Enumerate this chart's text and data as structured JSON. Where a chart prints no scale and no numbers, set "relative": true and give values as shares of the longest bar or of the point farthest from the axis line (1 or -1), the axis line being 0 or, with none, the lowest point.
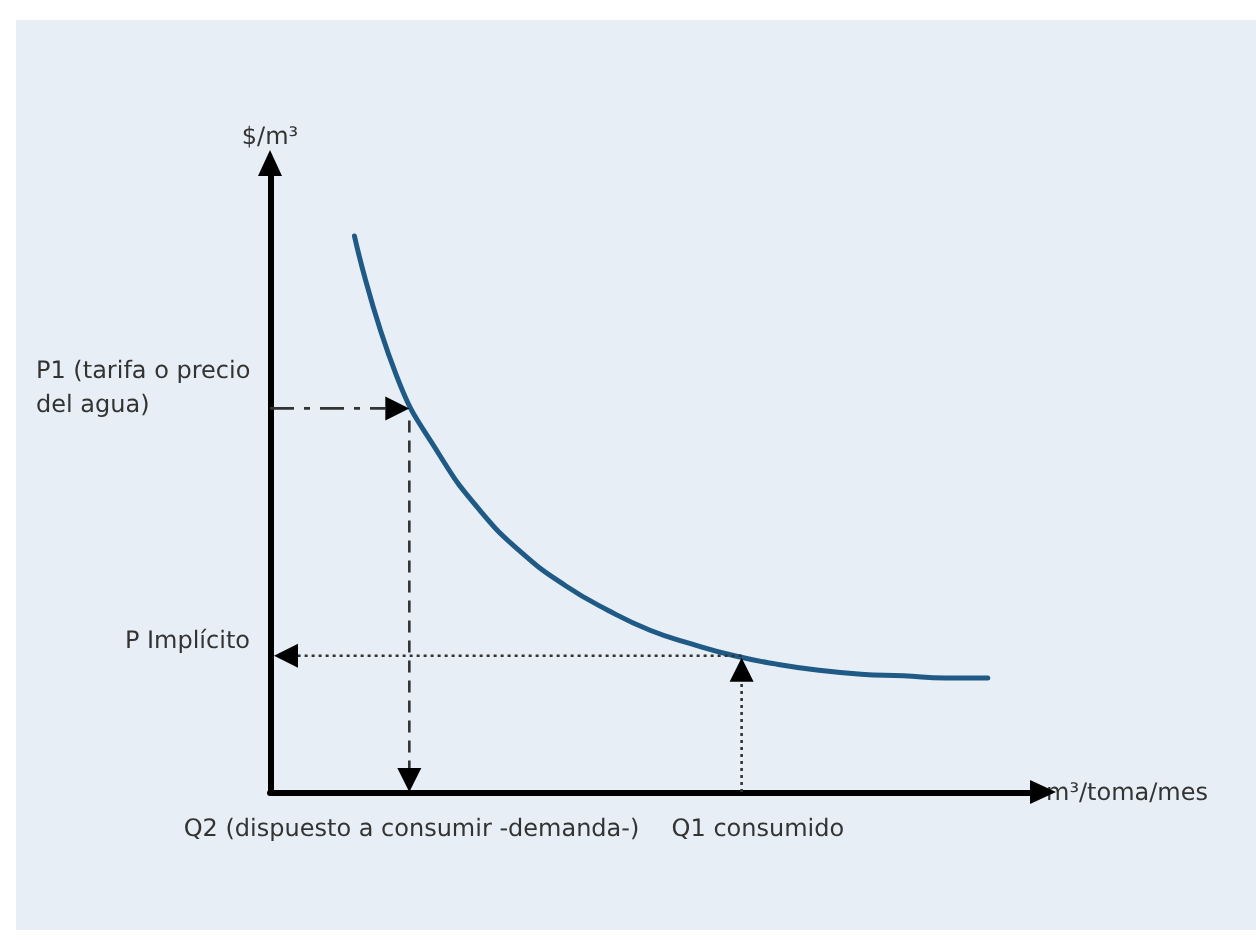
{
  "chart_data": {
    "type": "line",
    "relative": true,
    "xlabel": "m³/toma/mes",
    "ylabel": "$/m³",
    "categories": [
      null,
      null,
      null,
      null,
      null,
      null,
      null,
      null,
      null,
      null,
      null,
      null,
      null,
      null,
      null,
      null,
      null,
      null,
      null
    ],
    "series": [
      {
        "color": "#1f5a86",
        "values": [
          null,
          null,
          1,
          0.748,
          0.608,
          0.504,
          0.428,
          0.371,
          0.327,
          0.291,
          0.266,
          0.245,
          0.23,
          0.219,
          0.212,
          0.209,
          0.205,
          0.205,
          null
        ]
      }
    ],
    "annotations": [
      "P1 (tarifa o precio del agua)",
      "P Implícito",
      "Q2 (dispuesto a consumir -demanda-)",
      "Q1 consumido"
    ],
    "marker": "none",
    "line_style": "solid"
  }
}
